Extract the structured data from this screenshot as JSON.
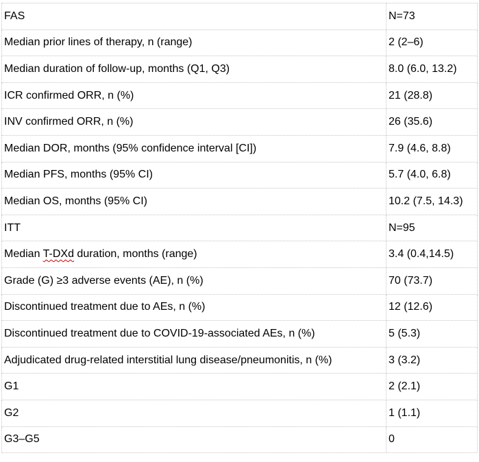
{
  "table": {
    "rows": [
      {
        "label": "FAS",
        "value": "N=73"
      },
      {
        "label": "Median prior lines of therapy, n (range)",
        "value": "2 (2–6)"
      },
      {
        "label": "Median duration of follow-up, months (Q1, Q3)",
        "value": "8.0 (6.0, 13.2)"
      },
      {
        "label": "ICR confirmed ORR, n (%)",
        "value": "21 (28.8)"
      },
      {
        "label": "INV confirmed ORR, n (%)",
        "value": "26 (35.6)"
      },
      {
        "label": "Median DOR, months (95% confidence interval [CI])",
        "value": "7.9 (4.6, 8.8)"
      },
      {
        "label": "Median PFS, months (95% CI)",
        "value": "5.7 (4.0, 6.8)"
      },
      {
        "label": "Median OS, months (95% CI)",
        "value": "10.2 (7.5, 14.3)"
      },
      {
        "label": "ITT",
        "value": "N=95"
      },
      {
        "label_prefix": "Median ",
        "label_mark": "T-DXd",
        "label_suffix": " duration, months (range)",
        "value": "3.4 (0.4,14.5)"
      },
      {
        "label": "Grade (G) ≥3 adverse events (AE), n (%)",
        "value": "70 (73.7)"
      },
      {
        "label": "Discontinued treatment due to AEs, n (%)",
        "value": "12 (12.6)"
      },
      {
        "label": "Discontinued treatment due to COVID-19-associated AEs, n (%)",
        "value": "5 (5.3)"
      },
      {
        "label": "Adjudicated drug-related interstitial lung disease/pneumonitis, n (%)",
        "value": "3 (3.2)"
      },
      {
        "label": "G1",
        "value": "2 (2.1)"
      },
      {
        "label": "G2",
        "value": "1 (1.1)"
      },
      {
        "label": "G3–G5",
        "value": "0"
      }
    ]
  },
  "colors": {
    "text": "#000000",
    "grid": "#c4c4c4",
    "spellcheck": "#d00000"
  }
}
